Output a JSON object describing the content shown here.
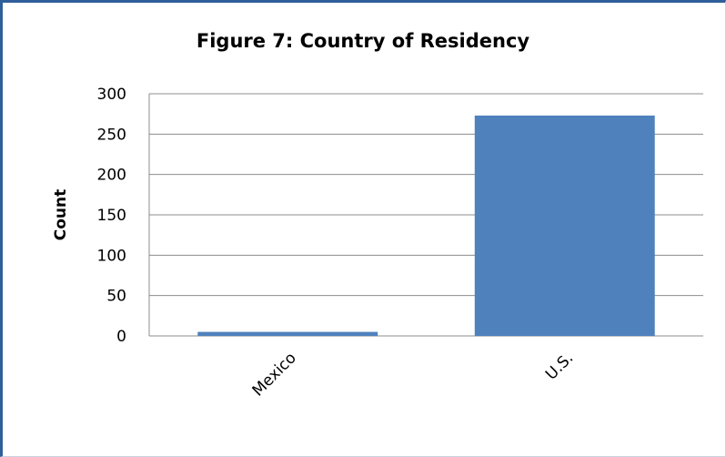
{
  "chart_data": {
    "type": "bar",
    "title": "Figure 7: Country of Residency",
    "xlabel": "",
    "ylabel": "Count",
    "categories": [
      "Mexico",
      "U.S."
    ],
    "values": [
      5,
      273
    ],
    "ylim": [
      0,
      300
    ],
    "yticks": [
      0,
      50,
      100,
      150,
      200,
      250,
      300
    ],
    "grid": true,
    "legend": "none",
    "bar_color": "#4f81bd"
  }
}
